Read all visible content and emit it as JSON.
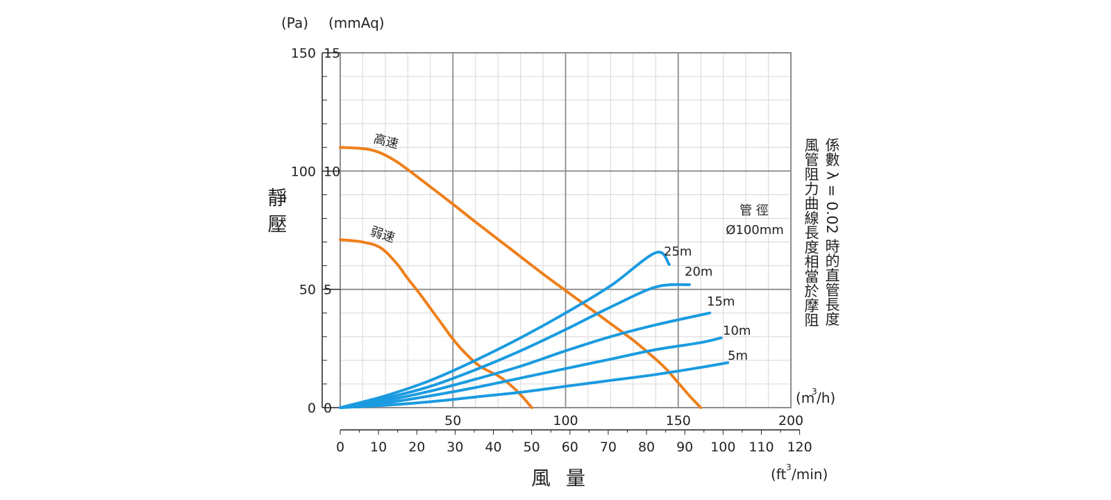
{
  "chart_data": {
    "type": "line",
    "title": "",
    "ylabel": "靜壓",
    "xlabel": "風量",
    "y_units_left": [
      "(Pa)",
      "(mmAq)"
    ],
    "x_unit_top": "(m3/h)",
    "x_unit_bottom": "(ft3/min)",
    "x_range_m3h": [
      0,
      200
    ],
    "y_range_mmAq": [
      0,
      15
    ],
    "x_ticks_m3h": [
      "50",
      "100",
      "150",
      "200"
    ],
    "x_ticks_cfm": [
      "0",
      "10",
      "20",
      "30",
      "40",
      "50",
      "60",
      "70",
      "80",
      "90",
      "100",
      "110",
      "120"
    ],
    "y_ticks_pa": [
      "0",
      "50",
      "100",
      "150"
    ],
    "y_ticks_mmaq": [
      "0",
      "5",
      "10",
      "15"
    ],
    "grid": true,
    "series": [
      {
        "name": "高速",
        "color": "#ee7f1a",
        "x": [
          0,
          10,
          17,
          25,
          35,
          50,
          60,
          75,
          90,
          100,
          110,
          120,
          130,
          140,
          145,
          150,
          155,
          160
        ],
        "y": [
          11.0,
          10.95,
          10.8,
          10.4,
          9.7,
          8.6,
          7.85,
          6.75,
          5.65,
          4.95,
          4.25,
          3.55,
          2.85,
          2.05,
          1.6,
          1.05,
          0.5,
          0
        ]
      },
      {
        "name": "弱速",
        "color": "#ee7f1a",
        "x": [
          0,
          10,
          18,
          25,
          30,
          35,
          40,
          45,
          50,
          55,
          62,
          70,
          75,
          80,
          85
        ],
        "y": [
          7.1,
          7.0,
          6.75,
          6.1,
          5.45,
          4.85,
          4.2,
          3.55,
          2.9,
          2.35,
          1.75,
          1.35,
          1.0,
          0.55,
          0
        ]
      },
      {
        "name": "25m",
        "color": "#1a9be0",
        "x": [
          0,
          20,
          40,
          60,
          80,
          100,
          120,
          140,
          146
        ],
        "y": [
          0,
          0.5,
          1.15,
          2.0,
          2.95,
          4.0,
          5.15,
          6.55,
          6.05
        ]
      },
      {
        "name": "20m",
        "color": "#1a9be0",
        "x": [
          0,
          20,
          40,
          60,
          80,
          100,
          120,
          140,
          155
        ],
        "y": [
          0,
          0.4,
          0.9,
          1.6,
          2.4,
          3.3,
          4.25,
          5.1,
          5.2
        ]
      },
      {
        "name": "15m",
        "color": "#1a9be0",
        "x": [
          0,
          20,
          40,
          60,
          80,
          100,
          120,
          140,
          164
        ],
        "y": [
          0,
          0.3,
          0.7,
          1.2,
          1.75,
          2.4,
          3.0,
          3.5,
          4.0
        ]
      },
      {
        "name": "10m",
        "color": "#1a9be0",
        "x": [
          0,
          20,
          40,
          60,
          80,
          100,
          120,
          140,
          160,
          169
        ],
        "y": [
          0,
          0.2,
          0.5,
          0.85,
          1.25,
          1.65,
          2.05,
          2.45,
          2.75,
          2.95
        ]
      },
      {
        "name": "5m",
        "color": "#1a9be0",
        "x": [
          0,
          20,
          40,
          60,
          80,
          100,
          120,
          140,
          160,
          172
        ],
        "y": [
          0,
          0.1,
          0.25,
          0.45,
          0.65,
          0.9,
          1.15,
          1.4,
          1.7,
          1.9
        ]
      }
    ],
    "annotations": {
      "pipe_label": "管 徑",
      "pipe_diameter": "Ø100mm",
      "note_line1": "風管阻力曲線長度相當於摩阻",
      "note_line2": "係數 λ = 0.02 時的直管長度"
    }
  }
}
